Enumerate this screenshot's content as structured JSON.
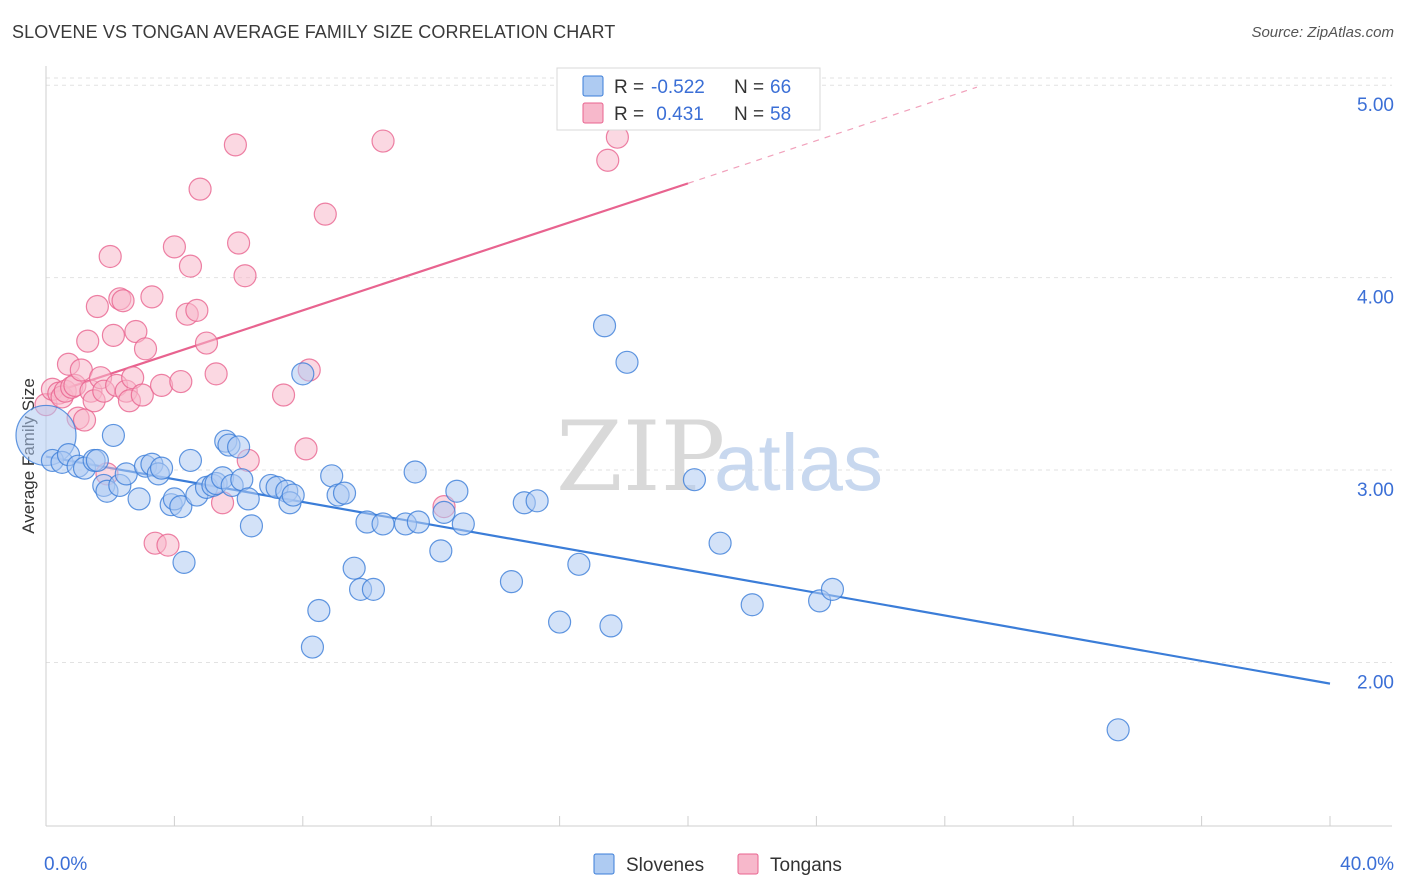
{
  "title": "SLOVENE VS TONGAN AVERAGE FAMILY SIZE CORRELATION CHART",
  "source": "Source: ZipAtlas.com",
  "watermark": {
    "zip": "ZIP",
    "atlas": "atlas"
  },
  "colors": {
    "blue": "#3b7dd8",
    "blue_fill": "#aecbf2",
    "pink": "#e8638f",
    "pink_fill": "#f7b8cb",
    "tick": "#3b6fd6",
    "grid": "#e2e2e2"
  },
  "legend_top": {
    "rows": [
      {
        "r_label": "R = ",
        "r_value": "-0.522",
        "n_label": "N = ",
        "n_value": "66",
        "series": "blue"
      },
      {
        "r_label": "R = ",
        "r_value": " 0.431",
        "n_label": "N = ",
        "n_value": "58",
        "series": "pink"
      }
    ]
  },
  "legend_bottom": [
    "Slovenes",
    "Tongans"
  ],
  "chart_data": {
    "type": "scatter",
    "title": "SLOVENE VS TONGAN AVERAGE FAMILY SIZE CORRELATION CHART",
    "xlabel": "",
    "ylabel": "Average Family Size",
    "xlim": [
      0,
      40
    ],
    "ylim": [
      1.15,
      5.1
    ],
    "x_tick_labels": [
      "0.0%",
      "40.0%"
    ],
    "y_ticks": [
      2.0,
      3.0,
      4.0,
      5.0
    ],
    "y_tick_labels": [
      "2.00",
      "3.00",
      "4.00",
      "5.00"
    ],
    "grid": true,
    "legend_position": "top-center",
    "series": [
      {
        "name": "Slovenes",
        "color": "blue",
        "R": -0.522,
        "N": 66,
        "trend": {
          "x0": 0,
          "y0": 3.07,
          "x1": 40,
          "y1": 1.89
        },
        "points": [
          [
            0.0,
            3.18,
            30
          ],
          [
            0.2,
            3.05,
            11
          ],
          [
            0.5,
            3.04,
            11
          ],
          [
            0.7,
            3.08,
            11
          ],
          [
            1.0,
            3.02,
            11
          ],
          [
            1.2,
            3.01,
            11
          ],
          [
            1.5,
            3.05,
            11
          ],
          [
            1.6,
            3.05,
            11
          ],
          [
            1.8,
            2.92,
            11
          ],
          [
            1.9,
            2.89,
            11
          ],
          [
            2.1,
            3.18,
            11
          ],
          [
            2.3,
            2.92,
            11
          ],
          [
            2.5,
            2.98,
            11
          ],
          [
            2.9,
            2.85,
            11
          ],
          [
            3.1,
            3.02,
            11
          ],
          [
            3.3,
            3.03,
            11
          ],
          [
            3.5,
            2.98,
            11
          ],
          [
            3.6,
            3.01,
            11
          ],
          [
            3.9,
            2.82,
            11
          ],
          [
            4.0,
            2.85,
            11
          ],
          [
            4.2,
            2.81,
            11
          ],
          [
            4.3,
            2.52,
            11
          ],
          [
            4.5,
            3.05,
            11
          ],
          [
            4.7,
            2.87,
            11
          ],
          [
            5.0,
            2.91,
            11
          ],
          [
            5.2,
            2.92,
            11
          ],
          [
            5.3,
            2.93,
            11
          ],
          [
            5.5,
            2.96,
            11
          ],
          [
            5.6,
            3.15,
            11
          ],
          [
            5.7,
            3.13,
            11
          ],
          [
            5.8,
            2.92,
            11
          ],
          [
            6.0,
            3.12,
            11
          ],
          [
            6.1,
            2.95,
            11
          ],
          [
            6.3,
            2.85,
            11
          ],
          [
            6.4,
            2.71,
            11
          ],
          [
            7.0,
            2.92,
            11
          ],
          [
            7.2,
            2.91,
            11
          ],
          [
            7.5,
            2.89,
            11
          ],
          [
            7.6,
            2.83,
            11
          ],
          [
            7.7,
            2.87,
            11
          ],
          [
            8.0,
            3.5,
            11
          ],
          [
            8.3,
            2.08,
            11
          ],
          [
            8.5,
            2.27,
            11
          ],
          [
            8.9,
            2.97,
            11
          ],
          [
            9.1,
            2.87,
            11
          ],
          [
            9.3,
            2.88,
            11
          ],
          [
            9.6,
            2.49,
            11
          ],
          [
            9.8,
            2.38,
            11
          ],
          [
            10.0,
            2.73,
            11
          ],
          [
            10.2,
            2.38,
            11
          ],
          [
            10.5,
            2.72,
            11
          ],
          [
            11.2,
            2.72,
            11
          ],
          [
            11.5,
            2.99,
            11
          ],
          [
            11.6,
            2.73,
            11
          ],
          [
            12.3,
            2.58,
            11
          ],
          [
            12.4,
            2.78,
            11
          ],
          [
            12.8,
            2.89,
            11
          ],
          [
            13.0,
            2.72,
            11
          ],
          [
            14.5,
            2.42,
            11
          ],
          [
            14.9,
            2.83,
            11
          ],
          [
            15.3,
            2.84,
            11
          ],
          [
            16.0,
            2.21,
            11
          ],
          [
            16.6,
            2.51,
            11
          ],
          [
            17.4,
            3.75,
            11
          ],
          [
            17.6,
            2.19,
            11
          ],
          [
            18.1,
            3.56,
            11
          ],
          [
            20.2,
            2.95,
            11
          ],
          [
            21.0,
            2.62,
            11
          ],
          [
            22.0,
            2.3,
            11
          ],
          [
            24.1,
            2.32,
            11
          ],
          [
            24.5,
            2.38,
            11
          ],
          [
            33.4,
            1.65,
            11
          ]
        ]
      },
      {
        "name": "Tongans",
        "color": "pink",
        "R": 0.431,
        "N": 58,
        "trend": {
          "x0": 0,
          "y0": 3.39,
          "x1": 20,
          "y1": 4.49,
          "dash_to_x": 29,
          "dash_to_y": 4.99
        },
        "points": [
          [
            0.0,
            3.34,
            11
          ],
          [
            0.2,
            3.42,
            11
          ],
          [
            0.4,
            3.4,
            11
          ],
          [
            0.5,
            3.38,
            11
          ],
          [
            0.6,
            3.41,
            11
          ],
          [
            0.7,
            3.55,
            11
          ],
          [
            0.8,
            3.43,
            11
          ],
          [
            0.9,
            3.44,
            11
          ],
          [
            1.0,
            3.27,
            11
          ],
          [
            1.1,
            3.52,
            11
          ],
          [
            1.2,
            3.26,
            11
          ],
          [
            1.3,
            3.67,
            11
          ],
          [
            1.4,
            3.41,
            11
          ],
          [
            1.5,
            3.36,
            11
          ],
          [
            1.6,
            3.85,
            11
          ],
          [
            1.7,
            3.48,
            11
          ],
          [
            1.8,
            3.41,
            11
          ],
          [
            1.9,
            2.98,
            11
          ],
          [
            2.0,
            4.11,
            11
          ],
          [
            2.1,
            3.7,
            11
          ],
          [
            2.2,
            3.44,
            11
          ],
          [
            2.3,
            3.89,
            11
          ],
          [
            2.4,
            3.88,
            11
          ],
          [
            2.5,
            3.41,
            11
          ],
          [
            2.6,
            3.36,
            11
          ],
          [
            2.7,
            3.48,
            11
          ],
          [
            2.8,
            3.72,
            11
          ],
          [
            3.0,
            3.39,
            11
          ],
          [
            3.1,
            3.63,
            11
          ],
          [
            3.3,
            3.9,
            11
          ],
          [
            3.4,
            2.62,
            11
          ],
          [
            3.6,
            3.44,
            11
          ],
          [
            3.8,
            2.61,
            11
          ],
          [
            4.0,
            4.16,
            11
          ],
          [
            4.2,
            3.46,
            11
          ],
          [
            4.4,
            3.81,
            11
          ],
          [
            4.5,
            4.06,
            11
          ],
          [
            4.7,
            3.83,
            11
          ],
          [
            4.8,
            4.46,
            11
          ],
          [
            5.0,
            3.66,
            11
          ],
          [
            5.3,
            3.5,
            11
          ],
          [
            5.5,
            2.83,
            11
          ],
          [
            5.9,
            4.69,
            11
          ],
          [
            6.0,
            4.18,
            11
          ],
          [
            6.2,
            4.01,
            11
          ],
          [
            6.3,
            3.05,
            11
          ],
          [
            7.4,
            3.39,
            11
          ],
          [
            8.1,
            3.11,
            11
          ],
          [
            8.2,
            3.52,
            11
          ],
          [
            8.7,
            4.33,
            11
          ],
          [
            10.5,
            4.71,
            11
          ],
          [
            12.4,
            2.81,
            11
          ],
          [
            17.5,
            4.61,
            11
          ],
          [
            17.8,
            4.73,
            11
          ]
        ]
      }
    ]
  }
}
